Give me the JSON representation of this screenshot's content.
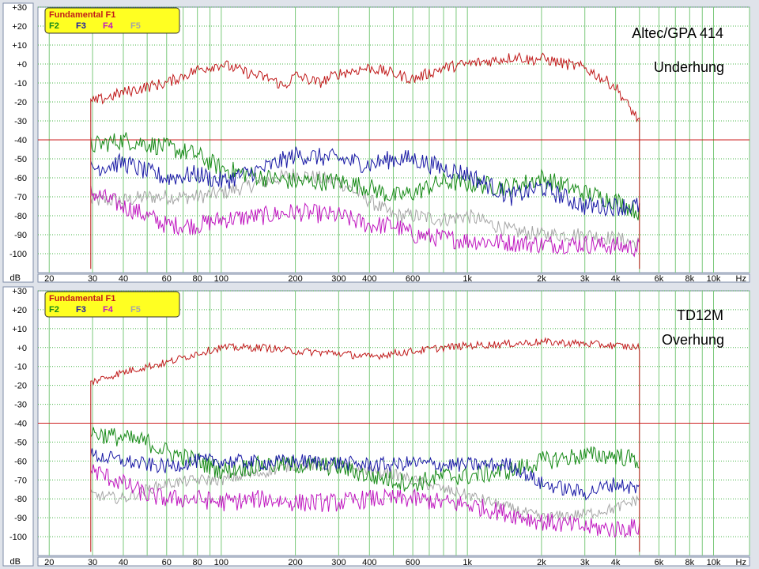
{
  "colors": {
    "background": "#dfe3ea",
    "plot_bg": "#ffffff",
    "grid_major": "#44b444",
    "grid_minor": "#7ac87a",
    "ref_line": "#cc2020",
    "legend_bg": "#ffff22",
    "F1": "#c01a1a",
    "F2": "#178a17",
    "F3": "#1a1aa6",
    "F4": "#c018c0",
    "F5": "#a6a6a6"
  },
  "legend": {
    "title": "Fundamental F1",
    "items": [
      "F2",
      "F3",
      "F4",
      "F5"
    ]
  },
  "chart_data": [
    {
      "type": "line",
      "annotations": [
        "Altec/GPA 414",
        "Underhung"
      ],
      "ylabel": "dB",
      "xunit": "Hz",
      "xscale": "log",
      "xlim": [
        18,
        14000
      ],
      "ylim": [
        -110,
        30
      ],
      "reference_line_y": -40,
      "y_ticks": [
        "+30",
        "+20",
        "+10",
        "+0",
        "-10",
        "-20",
        "-30",
        "-40",
        "-50",
        "-60",
        "-70",
        "-80",
        "-90",
        "-100"
      ],
      "x_ticks": [
        {
          "x": 20,
          "label": "20"
        },
        {
          "x": 30,
          "label": "30"
        },
        {
          "x": 40,
          "label": "40"
        },
        {
          "x": 60,
          "label": "60"
        },
        {
          "x": 80,
          "label": "80"
        },
        {
          "x": 100,
          "label": "100"
        },
        {
          "x": 200,
          "label": "200"
        },
        {
          "x": 300,
          "label": "300"
        },
        {
          "x": 400,
          "label": "400"
        },
        {
          "x": 600,
          "label": "600"
        },
        {
          "x": 1000,
          "label": "1k"
        },
        {
          "x": 2000,
          "label": "2k"
        },
        {
          "x": 3000,
          "label": "3k"
        },
        {
          "x": 4000,
          "label": "4k"
        },
        {
          "x": 6000,
          "label": "6k"
        },
        {
          "x": 8000,
          "label": "8k"
        },
        {
          "x": 10000,
          "label": "10k"
        }
      ],
      "series": [
        {
          "name": "F1",
          "x": [
            30,
            40,
            50,
            60,
            80,
            100,
            130,
            160,
            180,
            200,
            250,
            300,
            400,
            500,
            600,
            800,
            1000,
            1300,
            1600,
            1800,
            2000,
            2500,
            3000,
            4000,
            4500,
            5000
          ],
          "y": [
            -20,
            -15,
            -12,
            -10,
            -3,
            0,
            -5,
            -8,
            -12,
            -6,
            -10,
            -5,
            -2,
            -5,
            -8,
            -2,
            0,
            2,
            4,
            2,
            3,
            0,
            -2,
            -12,
            -22,
            -30
          ],
          "noise": 3
        },
        {
          "name": "F2",
          "x": [
            30,
            40,
            50,
            60,
            80,
            100,
            150,
            200,
            300,
            400,
            500,
            600,
            800,
            1000,
            1500,
            2000,
            3000,
            4000,
            5000
          ],
          "y": [
            -43,
            -40,
            -42,
            -44,
            -48,
            -55,
            -60,
            -62,
            -62,
            -65,
            -70,
            -68,
            -62,
            -63,
            -65,
            -60,
            -68,
            -72,
            -78
          ],
          "noise": 5
        },
        {
          "name": "F3",
          "x": [
            30,
            40,
            50,
            60,
            80,
            100,
            150,
            200,
            300,
            400,
            500,
            600,
            800,
            1000,
            1500,
            2000,
            3000,
            4000,
            5000
          ],
          "y": [
            -55,
            -52,
            -57,
            -60,
            -58,
            -62,
            -55,
            -48,
            -50,
            -53,
            -50,
            -50,
            -55,
            -58,
            -70,
            -65,
            -75,
            -75,
            -75
          ],
          "noise": 5
        },
        {
          "name": "F4",
          "x": [
            30,
            40,
            50,
            60,
            80,
            100,
            150,
            200,
            300,
            400,
            500,
            600,
            800,
            1000,
            2000,
            3000,
            4000,
            5000
          ],
          "y": [
            -68,
            -75,
            -80,
            -85,
            -85,
            -82,
            -80,
            -78,
            -80,
            -85,
            -85,
            -90,
            -92,
            -93,
            -95,
            -95,
            -96,
            -97
          ],
          "noise": 5
        },
        {
          "name": "F5",
          "x": [
            30,
            40,
            50,
            60,
            80,
            100,
            150,
            200,
            300,
            400,
            500,
            600,
            800,
            1000,
            1500,
            2000,
            3000,
            4000,
            5000
          ],
          "y": [
            -72,
            -72,
            -70,
            -70,
            -70,
            -68,
            -62,
            -58,
            -62,
            -72,
            -80,
            -80,
            -82,
            -80,
            -88,
            -90,
            -90,
            -92,
            -95
          ],
          "noise": 4
        }
      ]
    },
    {
      "type": "line",
      "annotations": [
        "TD12M",
        "Overhung"
      ],
      "ylabel": "dB",
      "xunit": "Hz",
      "xscale": "log",
      "xlim": [
        18,
        14000
      ],
      "ylim": [
        -110,
        30
      ],
      "reference_line_y": -40,
      "y_ticks": [
        "+30",
        "+20",
        "+10",
        "+0",
        "-10",
        "-20",
        "-30",
        "-40",
        "-50",
        "-60",
        "-70",
        "-80",
        "-90",
        "-100"
      ],
      "x_ticks": [
        {
          "x": 20,
          "label": "20"
        },
        {
          "x": 30,
          "label": "30"
        },
        {
          "x": 40,
          "label": "40"
        },
        {
          "x": 60,
          "label": "60"
        },
        {
          "x": 80,
          "label": "80"
        },
        {
          "x": 100,
          "label": "100"
        },
        {
          "x": 200,
          "label": "200"
        },
        {
          "x": 300,
          "label": "300"
        },
        {
          "x": 400,
          "label": "400"
        },
        {
          "x": 600,
          "label": "600"
        },
        {
          "x": 1000,
          "label": "1k"
        },
        {
          "x": 2000,
          "label": "2k"
        },
        {
          "x": 3000,
          "label": "3k"
        },
        {
          "x": 4000,
          "label": "4k"
        },
        {
          "x": 6000,
          "label": "6k"
        },
        {
          "x": 8000,
          "label": "8k"
        },
        {
          "x": 10000,
          "label": "10k"
        }
      ],
      "series": [
        {
          "name": "F1",
          "x": [
            30,
            40,
            50,
            60,
            80,
            100,
            150,
            200,
            300,
            400,
            500,
            600,
            800,
            1000,
            1500,
            2000,
            3000,
            4000,
            5000
          ],
          "y": [
            -18,
            -13,
            -10,
            -8,
            -3,
            0,
            0,
            -2,
            -3,
            -5,
            -3,
            -2,
            0,
            1,
            2,
            3,
            2,
            1,
            0
          ],
          "noise": 2
        },
        {
          "name": "F2",
          "x": [
            30,
            40,
            50,
            60,
            80,
            100,
            150,
            200,
            300,
            400,
            500,
            600,
            800,
            1000,
            1500,
            1800,
            2000,
            3000,
            4000,
            5000
          ],
          "y": [
            -45,
            -48,
            -50,
            -55,
            -60,
            -65,
            -62,
            -62,
            -63,
            -68,
            -70,
            -72,
            -68,
            -68,
            -65,
            -62,
            -60,
            -57,
            -57,
            -60
          ],
          "noise": 5
        },
        {
          "name": "F3",
          "x": [
            30,
            40,
            50,
            60,
            80,
            100,
            150,
            200,
            300,
            400,
            500,
            600,
            800,
            1000,
            1500,
            2000,
            3000,
            4000,
            5000
          ],
          "y": [
            -57,
            -60,
            -62,
            -63,
            -60,
            -60,
            -61,
            -60,
            -61,
            -62,
            -62,
            -61,
            -62,
            -62,
            -62,
            -72,
            -77,
            -72,
            -75
          ],
          "noise": 4
        },
        {
          "name": "F4",
          "x": [
            30,
            40,
            50,
            60,
            80,
            100,
            150,
            200,
            300,
            400,
            500,
            600,
            800,
            1000,
            1500,
            2000,
            3000,
            4000,
            5000
          ],
          "y": [
            -65,
            -72,
            -78,
            -80,
            -80,
            -82,
            -80,
            -82,
            -82,
            -80,
            -80,
            -80,
            -82,
            -83,
            -88,
            -92,
            -95,
            -96,
            -95
          ],
          "noise": 5
        },
        {
          "name": "F5",
          "x": [
            30,
            40,
            50,
            60,
            80,
            100,
            150,
            200,
            300,
            400,
            500,
            600,
            800,
            1000,
            1500,
            2000,
            3000,
            4000,
            5000
          ],
          "y": [
            -78,
            -80,
            -75,
            -72,
            -70,
            -70,
            -66,
            -62,
            -63,
            -65,
            -67,
            -70,
            -75,
            -78,
            -85,
            -90,
            -88,
            -85,
            -80
          ],
          "noise": 3
        }
      ]
    }
  ]
}
